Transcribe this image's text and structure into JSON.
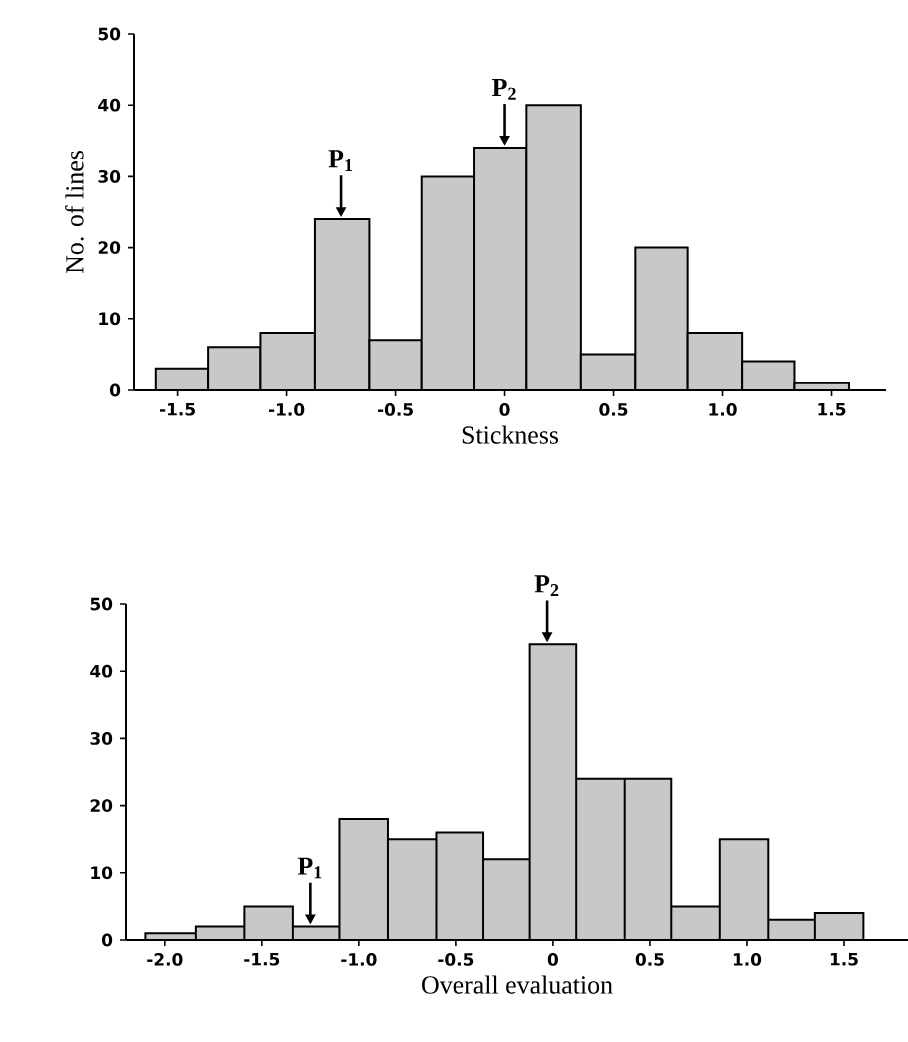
{
  "chart_data": [
    {
      "type": "histogram",
      "xlabel": "Stickness",
      "ylabel": "No. of lines",
      "bins": [
        -1.6,
        -1.36,
        -1.12,
        -0.87,
        -0.62,
        -0.38,
        -0.14,
        0.1,
        0.35,
        0.6,
        0.84,
        1.09,
        1.33,
        1.58
      ],
      "values": [
        3,
        6,
        8,
        24,
        7,
        30,
        34,
        40,
        5,
        20,
        8,
        4,
        1
      ],
      "color": "#c8c8c8",
      "xlim": [
        -1.7,
        1.75
      ],
      "ylim": [
        0,
        50
      ],
      "xticks": [
        -1.5,
        {
          "value": -1,
          "label": "-1.0"
        },
        -0.5,
        {
          "value": 0,
          "label": "0"
        },
        0.5,
        {
          "value": 1,
          "label": "1.0"
        },
        1.5
      ],
      "yticks": [
        0,
        10,
        20,
        30,
        40,
        50
      ],
      "annotations": [
        {
          "text": "P$_{1}$",
          "x": -0.75,
          "y": 24
        },
        {
          "text": "P$_{2}$",
          "x": 0,
          "y": 34
        }
      ]
    },
    {
      "type": "histogram",
      "xlabel": "Overall evaluation",
      "bins": [
        -2.1,
        -1.84,
        -1.59,
        -1.34,
        -1.1,
        -0.85,
        -0.6,
        -0.36,
        -0.12,
        0.12,
        0.37,
        0.61,
        0.86,
        1.11,
        1.35,
        1.6
      ],
      "values": [
        1,
        2,
        5,
        2,
        18,
        15,
        16,
        12,
        44,
        24,
        24,
        5,
        15,
        3,
        4
      ],
      "color": "#c8c8c8",
      "xlim": [
        -2.2,
        1.83
      ],
      "ylim": [
        0,
        50
      ],
      "xticks": [
        {
          "value": -2,
          "label": "-2.0"
        },
        -1.5,
        {
          "value": -1,
          "label": "-1.0"
        },
        -0.5,
        {
          "value": 0,
          "label": "0"
        },
        0.5,
        {
          "value": 1,
          "label": "1.0"
        },
        1.5
      ],
      "yticks": [
        0,
        10,
        20,
        30,
        40,
        50
      ],
      "annotations": [
        {
          "text": "P$_{1}$",
          "x": -1.25,
          "y": 2
        },
        {
          "text": "P$_{2}$",
          "x": -0.03,
          "y": 44
        }
      ]
    }
  ]
}
